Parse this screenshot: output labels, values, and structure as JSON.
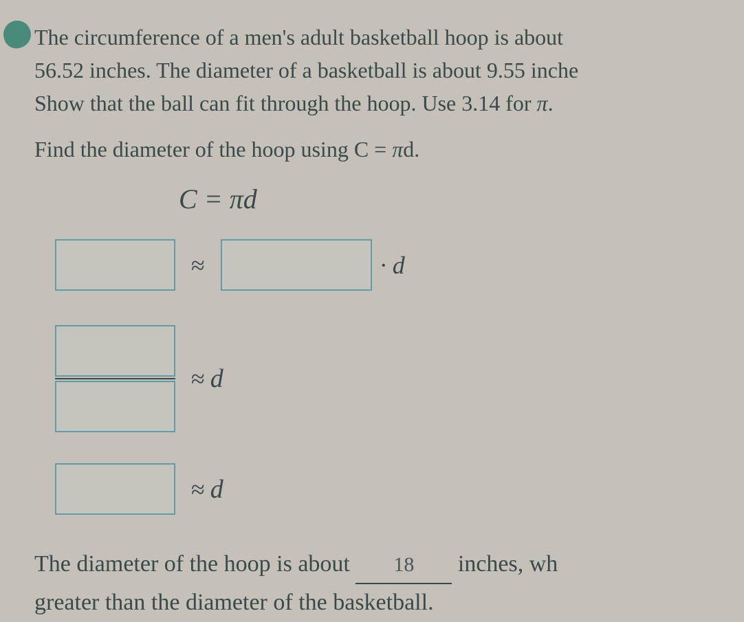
{
  "problem": {
    "line1": "The circumference of a men's adult basketball hoop is about",
    "line2": "56.52 inches. The diameter of a basketball is about 9.55 inche",
    "line3": "Show that the ball can fit through the hoop. Use 3.14 for "
  },
  "instruction": "Find the diameter of the hoop using C = ",
  "instruction_suffix": "d.",
  "formula": {
    "lhs": "C",
    "eq": "=",
    "rhs_pi": "π",
    "rhs_d": "d"
  },
  "approx_symbol": "≈",
  "dot": "·",
  "d_var": "d",
  "pi_symbol": "π",
  "conclusion": {
    "part1": "The diameter of the hoop is about ",
    "answer": "18",
    "part2": " inches, wh",
    "part3": "greater than the diameter of the basketball."
  },
  "colors": {
    "background": "#c5c1b8",
    "text": "#3a4a4a",
    "box_border": "#5d9ca8",
    "badge": "#4a8a7a"
  }
}
